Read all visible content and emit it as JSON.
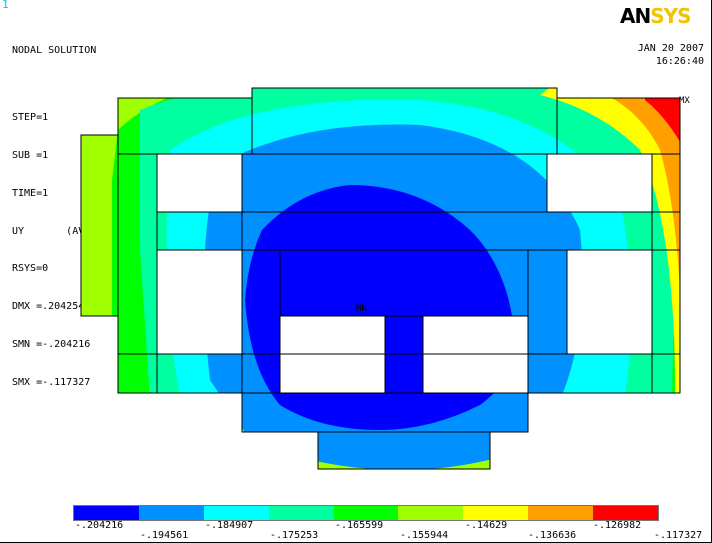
{
  "window": {
    "number": "1"
  },
  "info": {
    "title": "NODAL SOLUTION",
    "lines": [
      "STEP=1",
      "SUB =1",
      "TIME=1",
      "UY       (AVG)",
      "RSYS=0",
      "DMX =.204254",
      "SMN =-.204216",
      "SMX =-.117327"
    ]
  },
  "brand": {
    "logo_part1": "AN",
    "logo_part2": "SYS",
    "logo_color_main": "#000000",
    "logo_color_accent": "#f3c300"
  },
  "timestamp": {
    "date": "JAN 20 2007",
    "time": "16:26:40"
  },
  "markers": {
    "max_label": "MX",
    "min_label": "MN"
  },
  "legend": {
    "colors": [
      "#0000ff",
      "#0090ff",
      "#00ffff",
      "#00ffa0",
      "#00ff00",
      "#a0ff00",
      "#ffff00",
      "#ffa000",
      "#ff0000"
    ],
    "upper_ticks": [
      "-.204216",
      "-.184907",
      "-.165599",
      "-.14629",
      "-.126982"
    ],
    "lower_ticks": [
      "-.194561",
      "-.175253",
      "-.155944",
      "-.136636",
      "-.117327"
    ]
  },
  "contour_colors": {
    "c1": "#0000ff",
    "c2": "#0090ff",
    "c3": "#00ffff",
    "c4": "#00ffa0",
    "c5": "#00ff00",
    "c6": "#a0ff00",
    "c7": "#ffff00",
    "c8": "#ffa000",
    "c9": "#ff0000"
  }
}
